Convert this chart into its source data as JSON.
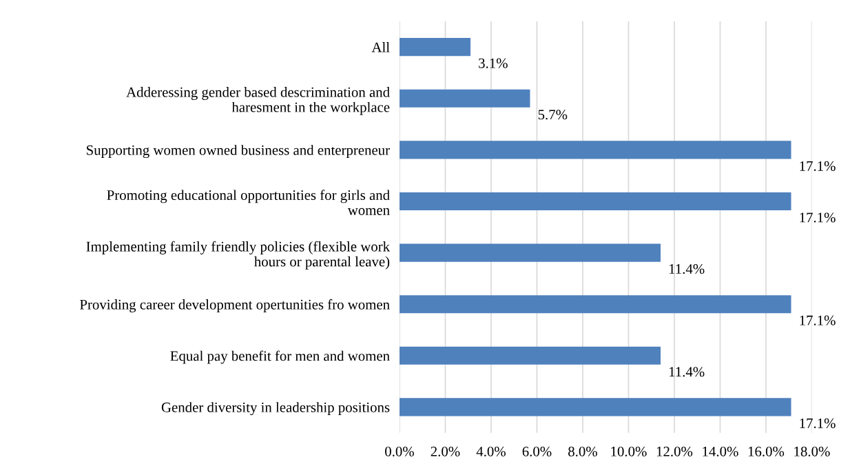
{
  "chart_data": {
    "type": "bar",
    "orientation": "horizontal",
    "categories": [
      "All",
      "Adderessing gender based descrimination and\nharesment in the workplace",
      "Supporting women owned business and enterpreneur",
      "Promoting educational opportunities for girls and\nwomen",
      "Implementing family friendly policies (flexible work\nhours or parental leave)",
      "Providing career development opertunities fro women",
      "Equal pay benefit for men and women",
      "Gender diversity in leadership positions"
    ],
    "values": [
      3.1,
      5.7,
      17.1,
      17.1,
      11.4,
      17.1,
      11.4,
      17.1
    ],
    "value_labels": [
      "3.1%",
      "5.7%",
      "17.1%",
      "17.1%",
      "11.4%",
      "17.1%",
      "11.4%",
      "17.1%"
    ],
    "color": "#4f81bd",
    "xlim": [
      0,
      18
    ],
    "xticks": [
      {
        "value": 0,
        "label": "0.0%"
      },
      {
        "value": 2,
        "label": "2.0%"
      },
      {
        "value": 4,
        "label": "4.0%"
      },
      {
        "value": 6,
        "label": "6.0%"
      },
      {
        "value": 8,
        "label": "8.0%"
      },
      {
        "value": 10,
        "label": "10.0%"
      },
      {
        "value": 12,
        "label": "12.0%"
      },
      {
        "value": 14,
        "label": "14.0%"
      },
      {
        "value": 16,
        "label": "16.0%"
      },
      {
        "value": 18,
        "label": "18.0%"
      }
    ],
    "grid": "x"
  }
}
